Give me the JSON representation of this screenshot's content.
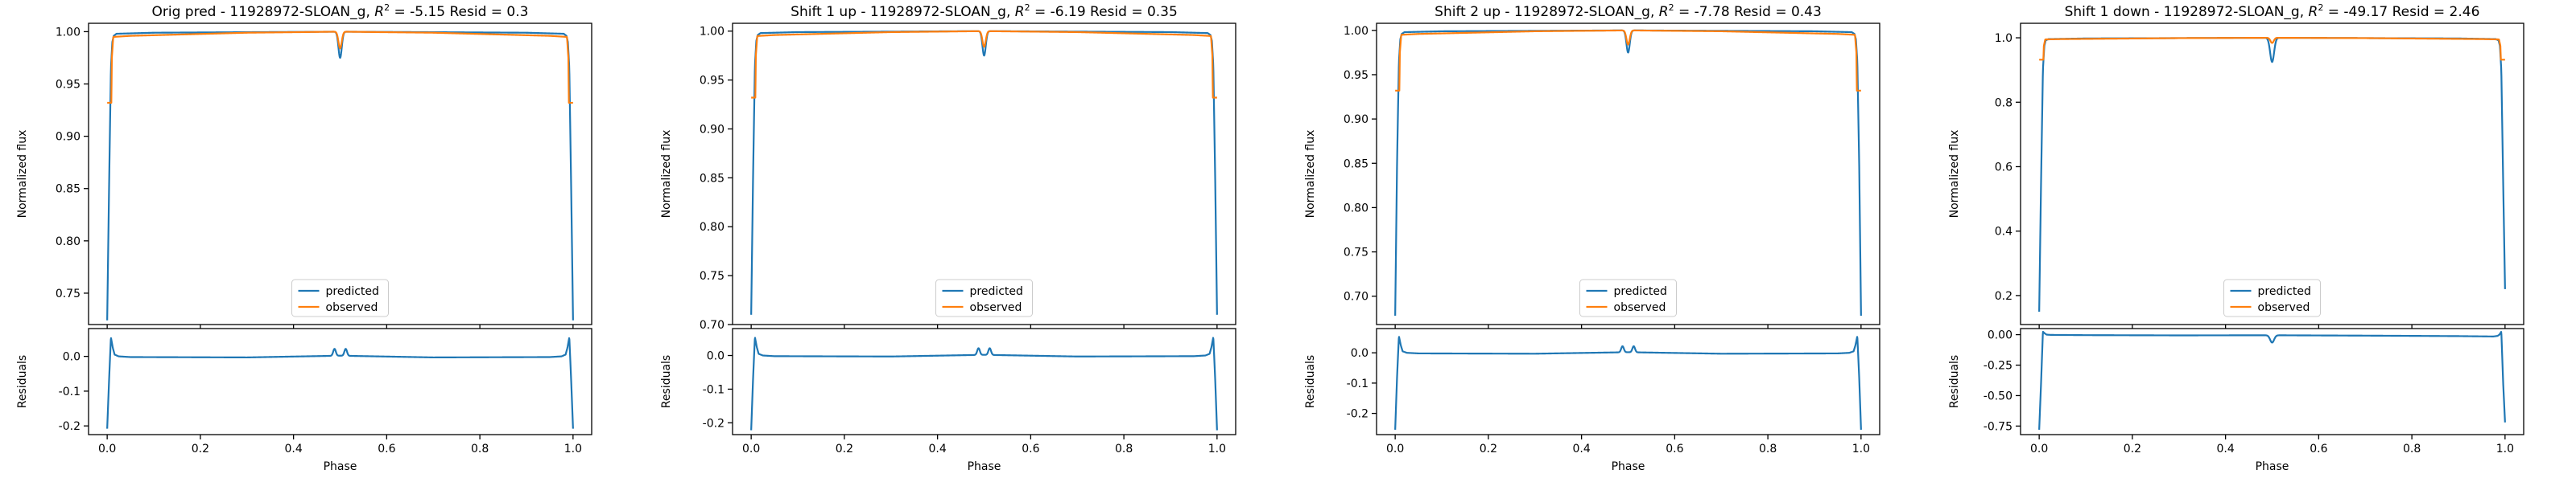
{
  "colors": {
    "predicted": "#1f77b4",
    "observed": "#ff7f0e",
    "axes": "#000000",
    "background": "#ffffff"
  },
  "chart_data": [
    {
      "type": "line",
      "title": {
        "prefix": "Orig pred - 11928972-SLOAN_g, ",
        "r2_base": "R",
        "r2_sup": "2",
        "suffix": " = -5.15 Resid = 0.3"
      },
      "xlabel": "Phase",
      "main": {
        "ylabel": "Normalized flux",
        "ylim": [
          0.72,
          1.008
        ],
        "yticks": [
          "0.75",
          "0.80",
          "0.85",
          "0.90",
          "0.95",
          "1.00"
        ],
        "legend": {
          "placement": "lower center",
          "entries": [
            "predicted",
            "observed"
          ]
        },
        "series": [
          {
            "name": "predicted",
            "color": "#1f77b4",
            "x": [
              0.0,
              0.004,
              0.008,
              0.011,
              0.014,
              0.02,
              0.1,
              0.3,
              0.5,
              0.7,
              0.9,
              0.98,
              0.986,
              0.989,
              0.992,
              0.996,
              1.0
            ],
            "y": [
              0.724,
              0.85,
              0.965,
              0.99,
              0.996,
              0.998,
              0.999,
              0.9995,
              1.0,
              0.9995,
              0.999,
              0.998,
              0.996,
              0.99,
              0.965,
              0.85,
              0.724
            ],
            "dip": {
              "center": 0.5,
              "depth": 0.025,
              "width": 0.005
            }
          },
          {
            "name": "observed",
            "color": "#ff7f0e",
            "x": [
              0.0,
              0.009,
              0.01,
              0.013,
              0.05,
              0.3,
              0.5,
              0.7,
              0.95,
              0.987,
              0.99,
              0.991,
              1.0
            ],
            "y": [
              0.932,
              0.932,
              0.975,
              0.995,
              0.996,
              0.999,
              1.0,
              0.999,
              0.996,
              0.995,
              0.975,
              0.932,
              0.932
            ],
            "dip": {
              "center": 0.5,
              "depth": 0.016,
              "width": 0.005
            }
          }
        ]
      },
      "resid": {
        "ylabel": "Residuals",
        "ylim": [
          -0.225,
          0.08
        ],
        "yticks": [
          "0.0",
          "-0.1",
          "-0.2"
        ],
        "series": [
          {
            "name": "residual",
            "color": "#1f77b4",
            "x": [
              0.0,
              0.004,
              0.008,
              0.012,
              0.016,
              0.025,
              0.05,
              0.3,
              0.5,
              0.7,
              0.95,
              0.975,
              0.984,
              0.988,
              0.992,
              0.996,
              1.0
            ],
            "y": [
              -0.208,
              -0.07,
              0.055,
              0.025,
              0.005,
              0.0,
              -0.002,
              -0.003,
              0.002,
              -0.003,
              -0.002,
              0.0,
              0.005,
              0.025,
              0.055,
              -0.07,
              -0.208
            ],
            "bumps": [
              {
                "center": 0.488,
                "height": 0.02,
                "width": 0.004
              },
              {
                "center": 0.512,
                "height": 0.02,
                "width": 0.004
              }
            ]
          }
        ]
      }
    },
    {
      "type": "line",
      "title": {
        "prefix": "Shift 1 up - 11928972-SLOAN_g, ",
        "r2_base": "R",
        "r2_sup": "2",
        "suffix": " = -6.19 Resid = 0.35"
      },
      "xlabel": "Phase",
      "main": {
        "ylabel": "Normalized flux",
        "ylim": [
          0.7,
          1.008
        ],
        "yticks": [
          "0.70",
          "0.75",
          "0.80",
          "0.85",
          "0.90",
          "0.95",
          "1.00"
        ],
        "legend": {
          "placement": "lower center",
          "entries": [
            "predicted",
            "observed"
          ]
        },
        "series": [
          {
            "name": "predicted",
            "color": "#1f77b4",
            "x": [
              0.0,
              0.004,
              0.008,
              0.011,
              0.014,
              0.02,
              0.1,
              0.3,
              0.5,
              0.7,
              0.9,
              0.98,
              0.986,
              0.989,
              0.992,
              0.996,
              1.0
            ],
            "y": [
              0.71,
              0.85,
              0.965,
              0.99,
              0.996,
              0.998,
              0.999,
              0.9995,
              1.0,
              0.9995,
              0.999,
              0.998,
              0.996,
              0.99,
              0.965,
              0.85,
              0.71
            ],
            "dip": {
              "center": 0.5,
              "depth": 0.025,
              "width": 0.005
            }
          },
          {
            "name": "observed",
            "color": "#ff7f0e",
            "x": [
              0.0,
              0.009,
              0.01,
              0.013,
              0.05,
              0.3,
              0.5,
              0.7,
              0.95,
              0.987,
              0.99,
              0.991,
              1.0
            ],
            "y": [
              0.932,
              0.932,
              0.975,
              0.995,
              0.996,
              0.999,
              1.0,
              0.999,
              0.996,
              0.995,
              0.975,
              0.932,
              0.932
            ],
            "dip": {
              "center": 0.5,
              "depth": 0.016,
              "width": 0.005
            }
          }
        ]
      },
      "resid": {
        "ylabel": "Residuals",
        "ylim": [
          -0.235,
          0.08
        ],
        "yticks": [
          "0.0",
          "-0.1",
          "-0.2"
        ],
        "series": [
          {
            "name": "residual",
            "color": "#1f77b4",
            "x": [
              0.0,
              0.004,
              0.008,
              0.012,
              0.016,
              0.025,
              0.05,
              0.3,
              0.5,
              0.7,
              0.95,
              0.975,
              0.984,
              0.988,
              0.992,
              0.996,
              1.0
            ],
            "y": [
              -0.222,
              -0.07,
              0.055,
              0.025,
              0.005,
              0.0,
              -0.002,
              -0.003,
              0.002,
              -0.003,
              -0.002,
              0.0,
              0.005,
              0.025,
              0.055,
              -0.07,
              -0.222
            ],
            "bumps": [
              {
                "center": 0.488,
                "height": 0.02,
                "width": 0.004
              },
              {
                "center": 0.512,
                "height": 0.02,
                "width": 0.004
              }
            ]
          }
        ]
      }
    },
    {
      "type": "line",
      "title": {
        "prefix": "Shift 2 up - 11928972-SLOAN_g, ",
        "r2_base": "R",
        "r2_sup": "2",
        "suffix": " = -7.78 Resid = 0.43"
      },
      "xlabel": "Phase",
      "main": {
        "ylabel": "Normalized flux",
        "ylim": [
          0.668,
          1.008
        ],
        "yticks": [
          "0.70",
          "0.75",
          "0.80",
          "0.85",
          "0.90",
          "0.95",
          "1.00"
        ],
        "legend": {
          "placement": "lower center",
          "entries": [
            "predicted",
            "observed"
          ]
        },
        "series": [
          {
            "name": "predicted",
            "color": "#1f77b4",
            "x": [
              0.0,
              0.004,
              0.008,
              0.011,
              0.014,
              0.02,
              0.1,
              0.3,
              0.5,
              0.7,
              0.9,
              0.98,
              0.986,
              0.989,
              0.992,
              0.996,
              1.0
            ],
            "y": [
              0.678,
              0.85,
              0.965,
              0.99,
              0.996,
              0.998,
              0.999,
              0.9995,
              1.0,
              0.9995,
              0.999,
              0.998,
              0.996,
              0.99,
              0.965,
              0.85,
              0.678
            ],
            "dip": {
              "center": 0.5,
              "depth": 0.025,
              "width": 0.005
            }
          },
          {
            "name": "observed",
            "color": "#ff7f0e",
            "x": [
              0.0,
              0.009,
              0.01,
              0.013,
              0.05,
              0.3,
              0.5,
              0.7,
              0.95,
              0.987,
              0.99,
              0.991,
              1.0
            ],
            "y": [
              0.932,
              0.932,
              0.975,
              0.995,
              0.996,
              0.999,
              1.0,
              0.999,
              0.996,
              0.995,
              0.975,
              0.932,
              0.932
            ],
            "dip": {
              "center": 0.5,
              "depth": 0.016,
              "width": 0.005
            }
          }
        ]
      },
      "resid": {
        "ylabel": "Residuals",
        "ylim": [
          -0.27,
          0.08
        ],
        "yticks": [
          "0.0",
          "-0.1",
          "-0.2"
        ],
        "series": [
          {
            "name": "residual",
            "color": "#1f77b4",
            "x": [
              0.0,
              0.004,
              0.008,
              0.012,
              0.016,
              0.025,
              0.05,
              0.3,
              0.5,
              0.7,
              0.95,
              0.975,
              0.984,
              0.988,
              0.992,
              0.996,
              1.0
            ],
            "y": [
              -0.254,
              -0.08,
              0.055,
              0.025,
              0.005,
              0.0,
              -0.002,
              -0.003,
              0.002,
              -0.003,
              -0.002,
              0.0,
              0.005,
              0.025,
              0.055,
              -0.08,
              -0.254
            ],
            "bumps": [
              {
                "center": 0.488,
                "height": 0.02,
                "width": 0.004
              },
              {
                "center": 0.512,
                "height": 0.02,
                "width": 0.004
              }
            ]
          }
        ]
      }
    },
    {
      "type": "line",
      "title": {
        "prefix": "Shift 1 down - 11928972-SLOAN_g, ",
        "r2_base": "R",
        "r2_sup": "2",
        "suffix": " = -49.17 Resid = 2.46"
      },
      "xlabel": "Phase",
      "main": {
        "ylabel": "Normalized flux",
        "ylim": [
          0.11,
          1.045
        ],
        "yticks": [
          "0.2",
          "0.4",
          "0.6",
          "0.8",
          "1.0"
        ],
        "legend": {
          "placement": "lower center",
          "entries": [
            "predicted",
            "observed"
          ]
        },
        "series": [
          {
            "name": "predicted",
            "color": "#1f77b4",
            "x": [
              0.0,
              0.004,
              0.008,
              0.011,
              0.014,
              0.02,
              0.1,
              0.3,
              0.5,
              0.7,
              0.9,
              0.98,
              0.986,
              0.989,
              0.992,
              0.996,
              1.0
            ],
            "y": [
              0.15,
              0.55,
              0.9,
              0.975,
              0.992,
              0.996,
              0.998,
              0.999,
              1.0,
              0.999,
              0.998,
              0.996,
              0.992,
              0.975,
              0.9,
              0.55,
              0.22
            ],
            "dip": {
              "center": 0.5,
              "depth": 0.075,
              "width": 0.006
            }
          },
          {
            "name": "observed",
            "color": "#ff7f0e",
            "x": [
              0.0,
              0.009,
              0.01,
              0.013,
              0.05,
              0.3,
              0.5,
              0.7,
              0.95,
              0.987,
              0.99,
              0.991,
              1.0
            ],
            "y": [
              0.932,
              0.932,
              0.975,
              0.995,
              0.996,
              0.999,
              1.0,
              0.999,
              0.996,
              0.995,
              0.975,
              0.932,
              0.932
            ],
            "dip": {
              "center": 0.5,
              "depth": 0.016,
              "width": 0.005
            }
          }
        ]
      },
      "resid": {
        "ylabel": "Residuals",
        "ylim": [
          -0.82,
          0.05
        ],
        "yticks": [
          "0.00",
          "-0.25",
          "-0.50",
          "-0.75"
        ],
        "series": [
          {
            "name": "residual",
            "color": "#1f77b4",
            "x": [
              0.0,
              0.004,
              0.008,
              0.012,
              0.016,
              0.025,
              0.1,
              0.3,
              0.5,
              0.7,
              0.9,
              0.975,
              0.984,
              0.988,
              0.992,
              0.996,
              1.0
            ],
            "y": [
              -0.78,
              -0.4,
              0.025,
              0.01,
              0.0,
              -0.002,
              -0.004,
              -0.006,
              -0.005,
              -0.008,
              -0.012,
              -0.015,
              -0.01,
              0.0,
              0.025,
              -0.4,
              -0.72
            ],
            "dip": {
              "center": 0.5,
              "depth": 0.06,
              "width": 0.006
            }
          }
        ]
      }
    }
  ]
}
